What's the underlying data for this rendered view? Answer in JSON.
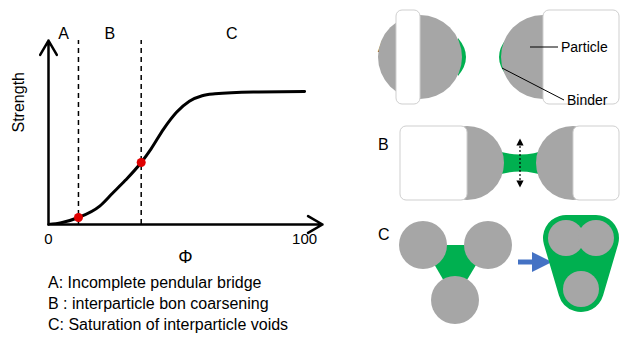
{
  "chart_data": {
    "type": "line",
    "x_label": "Φ",
    "y_label": "Strength",
    "x": [
      0,
      5,
      11.7,
      20,
      25,
      30,
      36.2,
      40,
      45,
      50,
      55,
      60,
      65,
      80,
      100
    ],
    "values": [
      0,
      1,
      3.8,
      10,
      17,
      24,
      33.7,
      41,
      52,
      61,
      67,
      70,
      71,
      72,
      72.3
    ],
    "color": "#000000",
    "xlim": [
      0,
      107
    ],
    "ylim": [
      0,
      100
    ],
    "xticks": [
      0,
      100
    ],
    "yticks": [],
    "tick_labels": "x",
    "grid": false,
    "regions": {
      "labels": [
        "A",
        "B",
        "C"
      ],
      "boundaries": [
        11.7,
        36.2
      ]
    },
    "points": {
      "x": [
        11.7,
        36.2
      ],
      "y": [
        3.8,
        33.7
      ],
      "color": "#e00000"
    },
    "annotations": [
      "A: Incomplete pendular bridge",
      "B : interparticle bon coarsening",
      "C: Saturation of interparticle voids"
    ]
  },
  "diagram": {
    "panels": [
      {
        "label": "A"
      },
      {
        "label": "B"
      },
      {
        "label": "C"
      }
    ],
    "callouts": {
      "particle": "Particle",
      "binder": "Binder"
    }
  }
}
